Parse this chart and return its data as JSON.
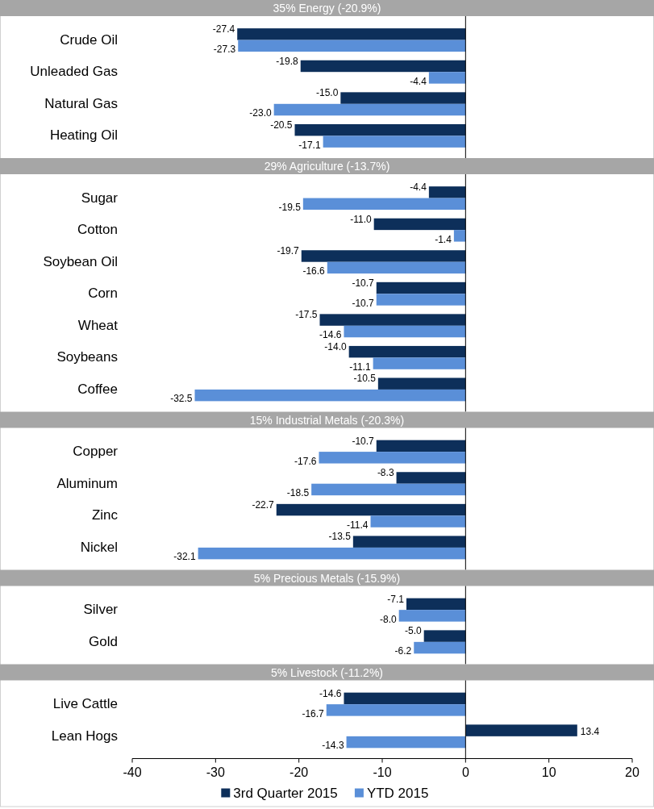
{
  "chart_data": [
    {
      "type": "bar",
      "orientation": "horizontal",
      "title": "35% Energy (-20.9%)",
      "categories": [
        "Crude Oil",
        "Unleaded Gas",
        "Natural Gas",
        "Heating Oil"
      ],
      "xlim": [
        -40,
        20
      ],
      "tick_labels": "y",
      "series": [
        {
          "color": "#0d2f5a",
          "values": [
            -27.4,
            -19.8,
            -15.0,
            -20.5
          ],
          "value_labels": [
            "-27.4",
            "-19.8",
            "-15.0",
            "-20.5"
          ]
        },
        {
          "color": "#5a8fd8",
          "values": [
            -27.3,
            -4.4,
            -23.0,
            -17.1
          ],
          "value_labels": [
            "-27.3",
            "-4.4",
            "-23.0",
            "-17.1"
          ]
        }
      ]
    },
    {
      "type": "bar",
      "orientation": "horizontal",
      "title": "29% Agriculture (-13.7%)",
      "categories": [
        "Sugar",
        "Cotton",
        "Soybean Oil",
        "Corn",
        "Wheat",
        "Soybeans",
        "Coffee"
      ],
      "xlim": [
        -40,
        20
      ],
      "tick_labels": "y",
      "series": [
        {
          "color": "#0d2f5a",
          "values": [
            -4.4,
            -11.0,
            -19.7,
            -10.7,
            -17.5,
            -14.0,
            -10.5
          ],
          "value_labels": [
            "-4.4",
            "-11.0",
            "-19.7",
            "-10.7",
            "-17.5",
            "-14.0",
            "-10.5"
          ]
        },
        {
          "color": "#5a8fd8",
          "values": [
            -19.5,
            -1.4,
            -16.6,
            -10.7,
            -14.6,
            -11.1,
            -32.5
          ],
          "value_labels": [
            "-19.5",
            "-1.4",
            "-16.6",
            "-10.7",
            "-14.6",
            "-11.1",
            "-32.5"
          ]
        }
      ]
    },
    {
      "type": "bar",
      "orientation": "horizontal",
      "title": "15% Industrial Metals (-20.3%)",
      "categories": [
        "Copper",
        "Aluminum",
        "Zinc",
        "Nickel"
      ],
      "xlim": [
        -40,
        20
      ],
      "tick_labels": "y",
      "series": [
        {
          "color": "#0d2f5a",
          "values": [
            -10.7,
            -8.3,
            -22.7,
            -13.5
          ],
          "value_labels": [
            "-10.7",
            "-8.3",
            "-22.7",
            "-13.5"
          ]
        },
        {
          "color": "#5a8fd8",
          "values": [
            -17.6,
            -18.5,
            -11.4,
            -32.1
          ],
          "value_labels": [
            "-17.6",
            "-18.5",
            "-11.4",
            "-32.1"
          ]
        }
      ]
    },
    {
      "type": "bar",
      "orientation": "horizontal",
      "title": "5% Precious Metals (-15.9%)",
      "categories": [
        "Silver",
        "Gold"
      ],
      "xlim": [
        -40,
        20
      ],
      "tick_labels": "y",
      "series": [
        {
          "color": "#0d2f5a",
          "values": [
            -7.1,
            -5.0
          ],
          "value_labels": [
            "-7.1",
            "-5.0"
          ]
        },
        {
          "color": "#5a8fd8",
          "values": [
            -8.0,
            -6.2
          ],
          "value_labels": [
            "-8.0",
            "-6.2"
          ]
        }
      ]
    },
    {
      "type": "bar",
      "orientation": "horizontal",
      "title": "5% Livestock (-11.2%)",
      "categories": [
        "Live Cattle",
        "Lean Hogs"
      ],
      "xlim": [
        -40,
        20
      ],
      "xticks": [
        -40,
        -30,
        -20,
        -10,
        0,
        10,
        20
      ],
      "legend": "bottom",
      "series": [
        {
          "name": "3rd Quarter 2015",
          "color": "#0d2f5a",
          "values": [
            -14.6,
            13.4
          ],
          "value_labels": [
            "-14.6",
            "13.4"
          ]
        },
        {
          "name": "YTD 2015",
          "color": "#5a8fd8",
          "values": [
            -16.7,
            -14.3
          ],
          "value_labels": [
            "-16.7",
            "-14.3"
          ]
        }
      ]
    }
  ]
}
